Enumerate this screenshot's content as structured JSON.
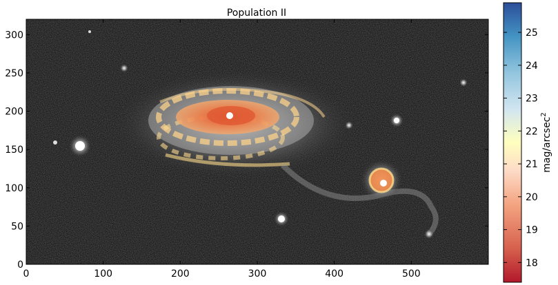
{
  "figure": {
    "title": "Population II",
    "colorbar_label": "mag/arcsec",
    "colorbar_label_sup": "2"
  },
  "image_axes": {
    "x_range": [
      0,
      600
    ],
    "y_range": [
      0,
      320
    ],
    "x_ticks": [
      0,
      100,
      200,
      300,
      400,
      500
    ],
    "y_ticks": [
      0,
      50,
      100,
      150,
      200,
      250,
      300
    ],
    "x_tick_labels": [
      "0",
      "100",
      "200",
      "300",
      "400",
      "500"
    ],
    "y_tick_labels": [
      "0",
      "50",
      "100",
      "150",
      "200",
      "250",
      "300"
    ]
  },
  "colorbar": {
    "range": [
      17.4,
      25.9
    ],
    "ticks": [
      18,
      19,
      20,
      21,
      22,
      23,
      24,
      25
    ],
    "tick_labels": [
      "18",
      "19",
      "20",
      "21",
      "22",
      "23",
      "24",
      "25"
    ],
    "colormap_stops": [
      "#b2182b",
      "#d6604d",
      "#f4a582",
      "#fddbc7",
      "#ffffbf",
      "#d1e5f0",
      "#92c5de",
      "#4393c3",
      "#2166ac"
    ]
  },
  "colors": {
    "sky_background": "#050505",
    "galaxy_glow": "#9a9a9a",
    "core_orange": "#f08a4b",
    "contour_yellow": "#fddc8a"
  }
}
